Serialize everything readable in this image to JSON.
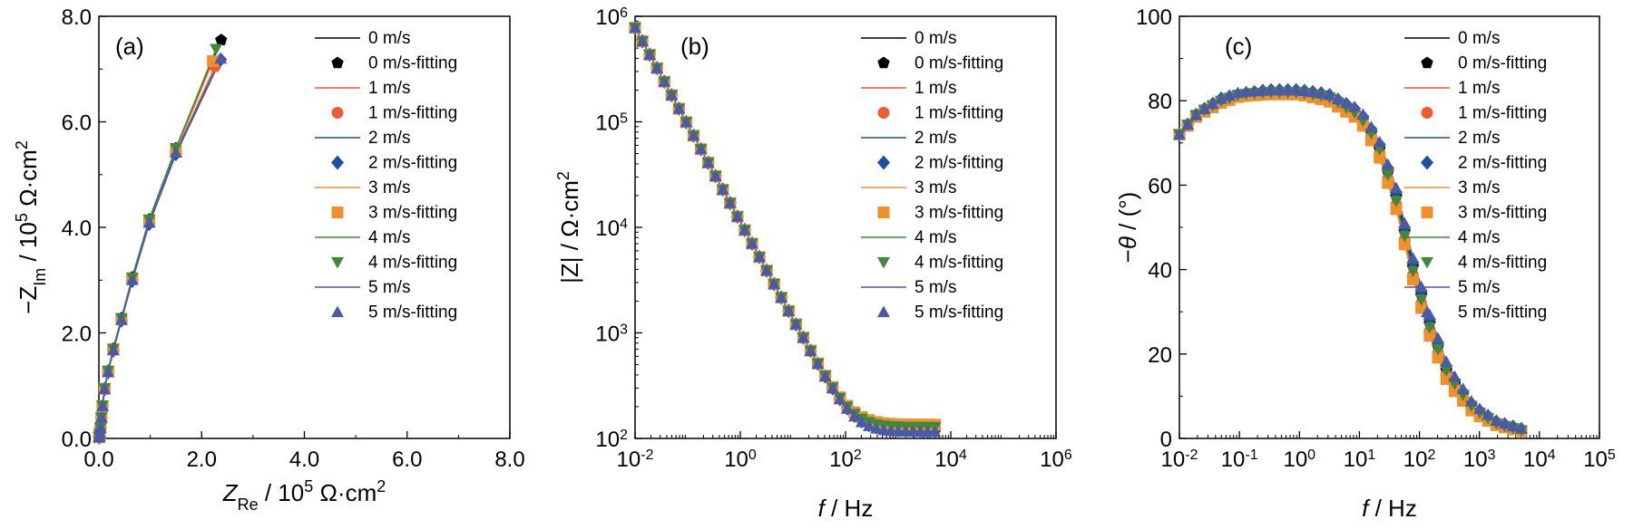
{
  "figure": {
    "style": {
      "series_colors": {
        "0 m/s": "#000000",
        "1 m/s": "#f05b32",
        "2 m/s": "#1f4fa0",
        "3 m/s": "#f0902a",
        "4 m/s": "#3f8a3a",
        "5 m/s": "#4a5aa8"
      },
      "marker_shapes": {
        "0 m/s": "pentagon",
        "1 m/s": "circle",
        "2 m/s": "diamond",
        "3 m/s": "square",
        "4 m/s": "triangle-down",
        "5 m/s": "triangle-up"
      }
    }
  },
  "chart_data": [
    {
      "type": "line",
      "panel_label": "(a)",
      "xlabel": {
        "main": "Z",
        "sub": "Re",
        "rest": " / 10",
        "sup": "5",
        "unit": " Ω·cm",
        "unit_sup": "2"
      },
      "ylabel": {
        "main": "−Z",
        "sub": "Im",
        "rest": " / 10",
        "sup": "5",
        "unit": " Ω·cm",
        "unit_sup": "2"
      },
      "xlim": [
        0,
        8
      ],
      "ylim": [
        0,
        8
      ],
      "xticks": [
        "0.0",
        "2.0",
        "4.0",
        "6.0",
        "8.0"
      ],
      "yticks": [
        "0.0",
        "2.0",
        "4.0",
        "6.0",
        "8.0"
      ],
      "legend": [
        "0 m/s",
        "0 m/s-fitting",
        "1 m/s",
        "1 m/s-fitting",
        "2 m/s",
        "2 m/s-fitting",
        "3 m/s",
        "3 m/s-fitting",
        "4 m/s",
        "4 m/s-fitting",
        "5 m/s",
        "5 m/s-fitting"
      ],
      "legend_position": "top-right",
      "series": [
        {
          "name": "0 m/s",
          "end": [
            2.38,
            7.55
          ],
          "scale": 1.0
        },
        {
          "name": "1 m/s",
          "end": [
            2.26,
            7.05
          ],
          "scale": 0.985
        },
        {
          "name": "2 m/s",
          "end": [
            2.37,
            7.18
          ],
          "scale": 0.98
        },
        {
          "name": "3 m/s",
          "end": [
            2.22,
            7.15
          ],
          "scale": 0.99
        },
        {
          "name": "4 m/s",
          "end": [
            2.28,
            7.38
          ],
          "scale": 1.0
        },
        {
          "name": "5 m/s",
          "end": [
            2.37,
            7.2
          ],
          "scale": 0.985
        }
      ],
      "base_points": [
        [
          0.005,
          0.02
        ],
        [
          0.01,
          0.05
        ],
        [
          0.02,
          0.1
        ],
        [
          0.03,
          0.2
        ],
        [
          0.05,
          0.4
        ],
        [
          0.07,
          0.62
        ],
        [
          0.11,
          0.95
        ],
        [
          0.18,
          1.28
        ],
        [
          0.28,
          1.7
        ],
        [
          0.44,
          2.28
        ],
        [
          0.65,
          3.05
        ],
        [
          0.98,
          4.15
        ],
        [
          1.5,
          5.5
        ]
      ]
    },
    {
      "type": "line",
      "panel_label": "(b)",
      "xlabel": {
        "italic": "f",
        "rest": " / Hz"
      },
      "ylabel": {
        "main": "|Z| / Ω·cm",
        "sup": "2"
      },
      "xscale": "log",
      "yscale": "log",
      "xlim": [
        0.01,
        1000000
      ],
      "ylim": [
        100,
        1000000
      ],
      "xticks": [
        {
          "base": "10",
          "exp": "-2"
        },
        {
          "base": "10",
          "exp": "0"
        },
        {
          "base": "10",
          "exp": "2"
        },
        {
          "base": "10",
          "exp": "4"
        },
        {
          "base": "10",
          "exp": "6"
        }
      ],
      "yticks": [
        {
          "base": "10",
          "exp": "2"
        },
        {
          "base": "10",
          "exp": "3"
        },
        {
          "base": "10",
          "exp": "4"
        },
        {
          "base": "10",
          "exp": "5"
        },
        {
          "base": "10",
          "exp": "6"
        }
      ],
      "legend": [
        "0 m/s",
        "0 m/s-fitting",
        "1 m/s",
        "1 m/s-fitting",
        "2 m/s",
        "2 m/s-fitting",
        "3 m/s",
        "3 m/s-fitting",
        "4 m/s",
        "4 m/s-fitting",
        "5 m/s",
        "5 m/s-fitting"
      ],
      "legend_position": "top-right",
      "freq_range": [
        0.01,
        5000
      ],
      "series": [
        {
          "name": "0 m/s",
          "R_ohm": 120,
          "plateau": 1,
          "z_at_0_01": 780000
        },
        {
          "name": "1 m/s",
          "R_ohm": 125,
          "plateau": 1,
          "z_at_0_01": 780000
        },
        {
          "name": "2 m/s",
          "R_ohm": 118,
          "plateau": 1,
          "z_at_0_01": 780000
        },
        {
          "name": "3 m/s",
          "R_ohm": 135,
          "plateau": 1,
          "z_at_0_01": 780000
        },
        {
          "name": "4 m/s",
          "R_ohm": 128,
          "plateau": 1,
          "z_at_0_01": 780000
        },
        {
          "name": "5 m/s",
          "R_ohm": 115,
          "plateau": 1,
          "z_at_0_01": 780000
        }
      ]
    },
    {
      "type": "line",
      "panel_label": "(c)",
      "xlabel": {
        "italic": "f",
        "rest": " / Hz"
      },
      "ylabel": {
        "main": "−",
        "italic": "θ",
        "rest": " / (°)"
      },
      "xscale": "log",
      "xlim": [
        0.01,
        100000
      ],
      "ylim": [
        0,
        100
      ],
      "xticks": [
        {
          "base": "10",
          "exp": "-2"
        },
        {
          "base": "10",
          "exp": "-1"
        },
        {
          "base": "10",
          "exp": "0"
        },
        {
          "base": "10",
          "exp": "1"
        },
        {
          "base": "10",
          "exp": "2"
        },
        {
          "base": "10",
          "exp": "3"
        },
        {
          "base": "10",
          "exp": "4"
        },
        {
          "base": "10",
          "exp": "5"
        }
      ],
      "yticks": [
        "0",
        "20",
        "40",
        "60",
        "80",
        "100"
      ],
      "legend": [
        "0 m/s",
        "0 m/s-fitting",
        "1 m/s",
        "1 m/s-fitting",
        "2 m/s",
        "2 m/s-fitting",
        "3 m/s",
        "3 m/s-fitting",
        "4 m/s",
        "4 m/s-fitting",
        "5 m/s",
        "5 m/s-fitting"
      ],
      "legend_position": "top-right",
      "series": [
        {
          "name": "0 m/s",
          "phase": [
            [
              0.01,
              72
            ],
            [
              0.02,
              77
            ],
            [
              0.05,
              80
            ],
            [
              0.1,
              81.5
            ],
            [
              0.3,
              82
            ],
            [
              1,
              82
            ],
            [
              3,
              81
            ],
            [
              10,
              77
            ],
            [
              20,
              70
            ],
            [
              40,
              58
            ],
            [
              80,
              40
            ],
            [
              150,
              27
            ],
            [
              300,
              15
            ],
            [
              800,
              7
            ],
            [
              2000,
              3.5
            ],
            [
              5000,
              2
            ]
          ]
        },
        {
          "name": "1 m/s",
          "phase": [
            [
              0.01,
              72
            ],
            [
              0.02,
              77
            ],
            [
              0.05,
              80
            ],
            [
              0.1,
              81.5
            ],
            [
              0.3,
              82
            ],
            [
              1,
              82
            ],
            [
              3,
              80.5
            ],
            [
              10,
              76
            ],
            [
              20,
              69
            ],
            [
              40,
              56
            ],
            [
              80,
              38
            ],
            [
              150,
              25
            ],
            [
              300,
              14
            ],
            [
              800,
              6.5
            ],
            [
              2000,
              3.2
            ],
            [
              5000,
              1.8
            ]
          ]
        },
        {
          "name": "2 m/s",
          "phase": [
            [
              0.01,
              72
            ],
            [
              0.02,
              77
            ],
            [
              0.05,
              80.5
            ],
            [
              0.1,
              81.5
            ],
            [
              0.3,
              82.5
            ],
            [
              1,
              82.5
            ],
            [
              3,
              81.5
            ],
            [
              10,
              77.5
            ],
            [
              20,
              71
            ],
            [
              40,
              59
            ],
            [
              80,
              41
            ],
            [
              150,
              28
            ],
            [
              300,
              16
            ],
            [
              800,
              7.5
            ],
            [
              2000,
              3.8
            ],
            [
              5000,
              2.2
            ]
          ]
        },
        {
          "name": "3 m/s",
          "phase": [
            [
              0.01,
              72
            ],
            [
              0.02,
              76.5
            ],
            [
              0.05,
              79.5
            ],
            [
              0.1,
              81
            ],
            [
              0.3,
              81.5
            ],
            [
              1,
              81.5
            ],
            [
              3,
              80
            ],
            [
              10,
              75.5
            ],
            [
              20,
              68
            ],
            [
              40,
              55
            ],
            [
              80,
              37
            ],
            [
              150,
              24
            ],
            [
              300,
              13
            ],
            [
              800,
              6
            ],
            [
              2000,
              3
            ],
            [
              5000,
              1.7
            ]
          ]
        },
        {
          "name": "4 m/s",
          "phase": [
            [
              0.01,
              72
            ],
            [
              0.02,
              77
            ],
            [
              0.05,
              80
            ],
            [
              0.1,
              81.5
            ],
            [
              0.3,
              82
            ],
            [
              1,
              82
            ],
            [
              3,
              81
            ],
            [
              10,
              76.5
            ],
            [
              20,
              70
            ],
            [
              40,
              57
            ],
            [
              80,
              39
            ],
            [
              150,
              26
            ],
            [
              300,
              15
            ],
            [
              800,
              7
            ],
            [
              2000,
              3.4
            ],
            [
              5000,
              1.9
            ]
          ]
        },
        {
          "name": "5 m/s",
          "phase": [
            [
              0.01,
              72
            ],
            [
              0.02,
              77
            ],
            [
              0.05,
              80.5
            ],
            [
              0.1,
              82
            ],
            [
              0.3,
              82.5
            ],
            [
              1,
              82.5
            ],
            [
              3,
              81.5
            ],
            [
              10,
              78
            ],
            [
              20,
              71.5
            ],
            [
              40,
              60
            ],
            [
              80,
              42
            ],
            [
              150,
              29
            ],
            [
              300,
              17
            ],
            [
              800,
              8
            ],
            [
              2000,
              4
            ],
            [
              5000,
              2.3
            ]
          ]
        }
      ]
    }
  ]
}
